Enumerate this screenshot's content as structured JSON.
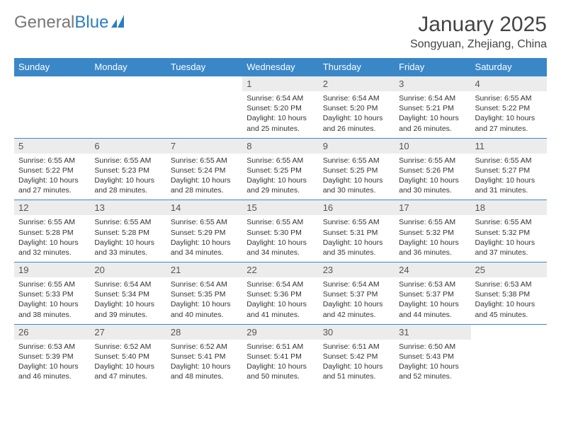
{
  "logo": {
    "text1": "General",
    "text2": "Blue"
  },
  "title": "January 2025",
  "location": "Songyuan, Zhejiang, China",
  "colors": {
    "header_bg": "#3a87c8",
    "header_text": "#ffffff",
    "daynum_bg": "#ececec",
    "row_border": "#3a87c8",
    "logo_blue": "#2a7ec5",
    "logo_gray": "#777777"
  },
  "day_names": [
    "Sunday",
    "Monday",
    "Tuesday",
    "Wednesday",
    "Thursday",
    "Friday",
    "Saturday"
  ],
  "weeks": [
    [
      {
        "n": "",
        "l1": "",
        "l2": "",
        "l3": "",
        "l4": ""
      },
      {
        "n": "",
        "l1": "",
        "l2": "",
        "l3": "",
        "l4": ""
      },
      {
        "n": "",
        "l1": "",
        "l2": "",
        "l3": "",
        "l4": ""
      },
      {
        "n": "1",
        "l1": "Sunrise: 6:54 AM",
        "l2": "Sunset: 5:20 PM",
        "l3": "Daylight: 10 hours",
        "l4": "and 25 minutes."
      },
      {
        "n": "2",
        "l1": "Sunrise: 6:54 AM",
        "l2": "Sunset: 5:20 PM",
        "l3": "Daylight: 10 hours",
        "l4": "and 26 minutes."
      },
      {
        "n": "3",
        "l1": "Sunrise: 6:54 AM",
        "l2": "Sunset: 5:21 PM",
        "l3": "Daylight: 10 hours",
        "l4": "and 26 minutes."
      },
      {
        "n": "4",
        "l1": "Sunrise: 6:55 AM",
        "l2": "Sunset: 5:22 PM",
        "l3": "Daylight: 10 hours",
        "l4": "and 27 minutes."
      }
    ],
    [
      {
        "n": "5",
        "l1": "Sunrise: 6:55 AM",
        "l2": "Sunset: 5:22 PM",
        "l3": "Daylight: 10 hours",
        "l4": "and 27 minutes."
      },
      {
        "n": "6",
        "l1": "Sunrise: 6:55 AM",
        "l2": "Sunset: 5:23 PM",
        "l3": "Daylight: 10 hours",
        "l4": "and 28 minutes."
      },
      {
        "n": "7",
        "l1": "Sunrise: 6:55 AM",
        "l2": "Sunset: 5:24 PM",
        "l3": "Daylight: 10 hours",
        "l4": "and 28 minutes."
      },
      {
        "n": "8",
        "l1": "Sunrise: 6:55 AM",
        "l2": "Sunset: 5:25 PM",
        "l3": "Daylight: 10 hours",
        "l4": "and 29 minutes."
      },
      {
        "n": "9",
        "l1": "Sunrise: 6:55 AM",
        "l2": "Sunset: 5:25 PM",
        "l3": "Daylight: 10 hours",
        "l4": "and 30 minutes."
      },
      {
        "n": "10",
        "l1": "Sunrise: 6:55 AM",
        "l2": "Sunset: 5:26 PM",
        "l3": "Daylight: 10 hours",
        "l4": "and 30 minutes."
      },
      {
        "n": "11",
        "l1": "Sunrise: 6:55 AM",
        "l2": "Sunset: 5:27 PM",
        "l3": "Daylight: 10 hours",
        "l4": "and 31 minutes."
      }
    ],
    [
      {
        "n": "12",
        "l1": "Sunrise: 6:55 AM",
        "l2": "Sunset: 5:28 PM",
        "l3": "Daylight: 10 hours",
        "l4": "and 32 minutes."
      },
      {
        "n": "13",
        "l1": "Sunrise: 6:55 AM",
        "l2": "Sunset: 5:28 PM",
        "l3": "Daylight: 10 hours",
        "l4": "and 33 minutes."
      },
      {
        "n": "14",
        "l1": "Sunrise: 6:55 AM",
        "l2": "Sunset: 5:29 PM",
        "l3": "Daylight: 10 hours",
        "l4": "and 34 minutes."
      },
      {
        "n": "15",
        "l1": "Sunrise: 6:55 AM",
        "l2": "Sunset: 5:30 PM",
        "l3": "Daylight: 10 hours",
        "l4": "and 34 minutes."
      },
      {
        "n": "16",
        "l1": "Sunrise: 6:55 AM",
        "l2": "Sunset: 5:31 PM",
        "l3": "Daylight: 10 hours",
        "l4": "and 35 minutes."
      },
      {
        "n": "17",
        "l1": "Sunrise: 6:55 AM",
        "l2": "Sunset: 5:32 PM",
        "l3": "Daylight: 10 hours",
        "l4": "and 36 minutes."
      },
      {
        "n": "18",
        "l1": "Sunrise: 6:55 AM",
        "l2": "Sunset: 5:32 PM",
        "l3": "Daylight: 10 hours",
        "l4": "and 37 minutes."
      }
    ],
    [
      {
        "n": "19",
        "l1": "Sunrise: 6:55 AM",
        "l2": "Sunset: 5:33 PM",
        "l3": "Daylight: 10 hours",
        "l4": "and 38 minutes."
      },
      {
        "n": "20",
        "l1": "Sunrise: 6:54 AM",
        "l2": "Sunset: 5:34 PM",
        "l3": "Daylight: 10 hours",
        "l4": "and 39 minutes."
      },
      {
        "n": "21",
        "l1": "Sunrise: 6:54 AM",
        "l2": "Sunset: 5:35 PM",
        "l3": "Daylight: 10 hours",
        "l4": "and 40 minutes."
      },
      {
        "n": "22",
        "l1": "Sunrise: 6:54 AM",
        "l2": "Sunset: 5:36 PM",
        "l3": "Daylight: 10 hours",
        "l4": "and 41 minutes."
      },
      {
        "n": "23",
        "l1": "Sunrise: 6:54 AM",
        "l2": "Sunset: 5:37 PM",
        "l3": "Daylight: 10 hours",
        "l4": "and 42 minutes."
      },
      {
        "n": "24",
        "l1": "Sunrise: 6:53 AM",
        "l2": "Sunset: 5:37 PM",
        "l3": "Daylight: 10 hours",
        "l4": "and 44 minutes."
      },
      {
        "n": "25",
        "l1": "Sunrise: 6:53 AM",
        "l2": "Sunset: 5:38 PM",
        "l3": "Daylight: 10 hours",
        "l4": "and 45 minutes."
      }
    ],
    [
      {
        "n": "26",
        "l1": "Sunrise: 6:53 AM",
        "l2": "Sunset: 5:39 PM",
        "l3": "Daylight: 10 hours",
        "l4": "and 46 minutes."
      },
      {
        "n": "27",
        "l1": "Sunrise: 6:52 AM",
        "l2": "Sunset: 5:40 PM",
        "l3": "Daylight: 10 hours",
        "l4": "and 47 minutes."
      },
      {
        "n": "28",
        "l1": "Sunrise: 6:52 AM",
        "l2": "Sunset: 5:41 PM",
        "l3": "Daylight: 10 hours",
        "l4": "and 48 minutes."
      },
      {
        "n": "29",
        "l1": "Sunrise: 6:51 AM",
        "l2": "Sunset: 5:41 PM",
        "l3": "Daylight: 10 hours",
        "l4": "and 50 minutes."
      },
      {
        "n": "30",
        "l1": "Sunrise: 6:51 AM",
        "l2": "Sunset: 5:42 PM",
        "l3": "Daylight: 10 hours",
        "l4": "and 51 minutes."
      },
      {
        "n": "31",
        "l1": "Sunrise: 6:50 AM",
        "l2": "Sunset: 5:43 PM",
        "l3": "Daylight: 10 hours",
        "l4": "and 52 minutes."
      },
      {
        "n": "",
        "l1": "",
        "l2": "",
        "l3": "",
        "l4": ""
      }
    ]
  ]
}
